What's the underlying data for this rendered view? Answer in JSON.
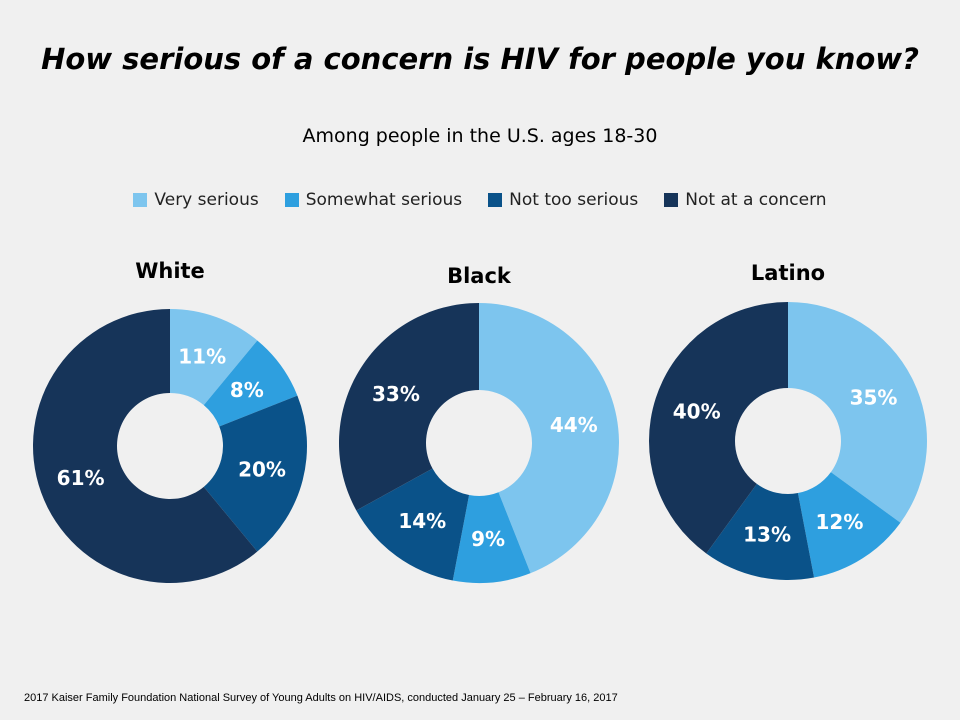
{
  "chart_data": {
    "type": "pie",
    "variant": "donut",
    "title": "How serious of a concern is HIV for people you know?",
    "subtitle": "Among people in the U.S. ages 18-30",
    "legend_position": "top",
    "categories": [
      "Very serious",
      "Somewhat serious",
      "Not too serious",
      "Not at a concern"
    ],
    "colors": [
      "#7dc5ee",
      "#2e9fdf",
      "#0a5289",
      "#163459"
    ],
    "charts": [
      {
        "name": "White",
        "values": [
          11,
          8,
          20,
          61
        ],
        "labels": [
          "11%",
          "8%",
          "20%",
          "61%"
        ]
      },
      {
        "name": "Black",
        "values": [
          44,
          9,
          14,
          33
        ],
        "labels": [
          "44%",
          "9%",
          "14%",
          "33%"
        ]
      },
      {
        "name": "Latino",
        "values": [
          35,
          12,
          13,
          40
        ],
        "labels": [
          "35%",
          "12%",
          "13%",
          "40%"
        ]
      }
    ]
  },
  "footer": "2017 Kaiser Family Foundation National Survey of Young Adults on HIV/AIDS, conducted January 25 – February 16, 2017"
}
